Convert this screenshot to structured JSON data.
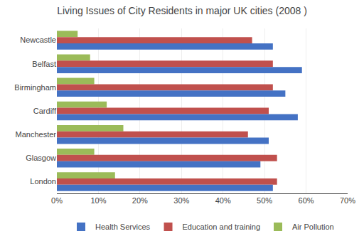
{
  "chart_data": {
    "type": "bar",
    "orientation": "horizontal",
    "title": "Living Issues of City Residents in major UK cities (2008 )",
    "categories": [
      "Newcastle",
      "Belfast",
      "Birmingham",
      "Cardiff",
      "Manchester",
      "Glasgow",
      "London"
    ],
    "series": [
      {
        "name": "Health Services",
        "color": "#4472C4",
        "values": [
          52,
          59,
          55,
          58,
          51,
          49,
          52
        ]
      },
      {
        "name": "Education and training",
        "color": "#C0504D",
        "values": [
          47,
          52,
          52,
          51,
          46,
          53,
          53
        ]
      },
      {
        "name": "Air Pollution",
        "color": "#9BBB59",
        "values": [
          5,
          8,
          9,
          12,
          16,
          9,
          14
        ]
      }
    ],
    "xlim": [
      0,
      70
    ],
    "xticks": [
      {
        "value": 0,
        "label": "0%"
      },
      {
        "value": 10,
        "label": "10%"
      },
      {
        "value": 20,
        "label": "20%"
      },
      {
        "value": 30,
        "label": "30%"
      },
      {
        "value": 40,
        "label": "40%"
      },
      {
        "value": 50,
        "label": "50%"
      },
      {
        "value": 60,
        "label": "60%"
      },
      {
        "value": 70,
        "label": "70%"
      }
    ],
    "grid": true,
    "legend": "bottom"
  }
}
